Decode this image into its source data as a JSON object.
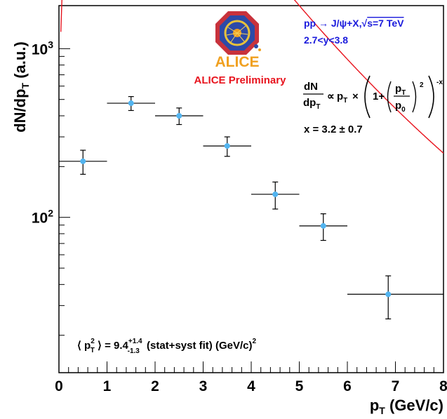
{
  "chart_data": {
    "type": "scatter",
    "xlabel_main": "p",
    "xlabel_sub": "T",
    "xlabel_unit": " (GeV/c)",
    "ylabel_main": "dN/dp",
    "ylabel_sub": "T",
    "ylabel_unit": " (a.u.)",
    "xlim": [
      0,
      8
    ],
    "ylim": [
      12,
      1800
    ],
    "yscale": "log",
    "x_ticks": [
      0,
      1,
      2,
      3,
      4,
      5,
      6,
      7,
      8
    ],
    "y_tick_labels": [
      {
        "value": 100,
        "base": "10",
        "exp": "2"
      },
      {
        "value": 1000,
        "base": "10",
        "exp": "3"
      }
    ],
    "grid": false,
    "points": [
      {
        "x": 0.5,
        "y": 215,
        "xerr_low": 0.5,
        "xerr_high": 0.5,
        "yerr_low": 35,
        "yerr_high": 35
      },
      {
        "x": 1.5,
        "y": 475,
        "xerr_low": 0.5,
        "xerr_high": 0.5,
        "yerr_low": 45,
        "yerr_high": 45
      },
      {
        "x": 2.5,
        "y": 400,
        "xerr_low": 0.5,
        "xerr_high": 0.5,
        "yerr_low": 45,
        "yerr_high": 45
      },
      {
        "x": 3.5,
        "y": 265,
        "xerr_low": 0.5,
        "xerr_high": 0.5,
        "yerr_low": 35,
        "yerr_high": 35
      },
      {
        "x": 4.5,
        "y": 137,
        "xerr_low": 0.5,
        "xerr_high": 0.5,
        "yerr_low": 25,
        "yerr_high": 25
      },
      {
        "x": 5.5,
        "y": 89,
        "xerr_low": 0.5,
        "xerr_high": 0.5,
        "yerr_low": 16,
        "yerr_high": 16
      },
      {
        "x": 6.85,
        "y": 35,
        "xerr_low": 0.85,
        "xerr_high": 1.15,
        "yerr_low": 10,
        "yerr_high": 10
      }
    ],
    "fit": {
      "norm": 31500,
      "p0": 2.866,
      "n": 3.2,
      "color": "#e8141e"
    },
    "marker_color": "#52b4f0"
  },
  "annotations": {
    "process_pp": "pp",
    "process_arrow": "→",
    "process_final": "J/ψ+X,",
    "process_sqrt": "√",
    "process_energy": "s=7 TeV",
    "rapidity": "2.7<y<3.8",
    "preliminary": "ALICE Preliminary",
    "logo_text": "ALICE",
    "formula_dn": "dN",
    "formula_dp": "dp",
    "formula_t": "T",
    "formula_prop": "∝",
    "formula_p": "p",
    "formula_times": "×",
    "formula_one_plus": "1+",
    "formula_p0": "p",
    "formula_zero": "0",
    "formula_sq": "2",
    "formula_minus_x": "-x",
    "x_fit": "x = 3.2",
    "x_pm": "±",
    "x_err": "0.7",
    "mean_open": "⟨",
    "mean_p": "p",
    "mean_t": "T",
    "mean_sq": "2",
    "mean_close": "⟩",
    "mean_value": "= 9.4",
    "mean_plus": "+1.4",
    "mean_minus": "-1.3",
    "mean_rest": "(stat+syst fit) (GeV/c)",
    "mean_unit_sq": "2"
  }
}
